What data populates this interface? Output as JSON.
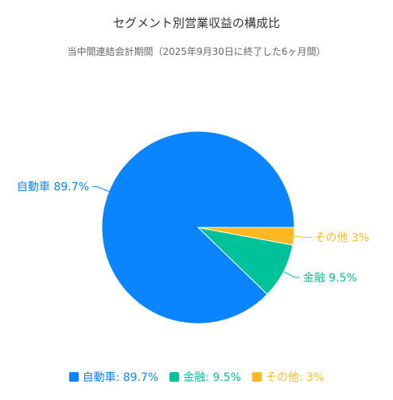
{
  "chart_data": {
    "type": "pie",
    "title": "セグメント別営業収益の構成比",
    "subtitle": "当中間連結会計期間（2025年9月30日に終了した6ヶ月間）",
    "slices": [
      {
        "label": "自動車",
        "value": 89.7,
        "display": "89.7%",
        "color": "#0a84ff"
      },
      {
        "label": "金融",
        "value": 9.5,
        "display": "9.5%",
        "color": "#00c29a"
      },
      {
        "label": "その他",
        "value": 3,
        "display": "3%",
        "color": "#ffb822"
      }
    ],
    "legend": {
      "position": "bottom"
    }
  }
}
